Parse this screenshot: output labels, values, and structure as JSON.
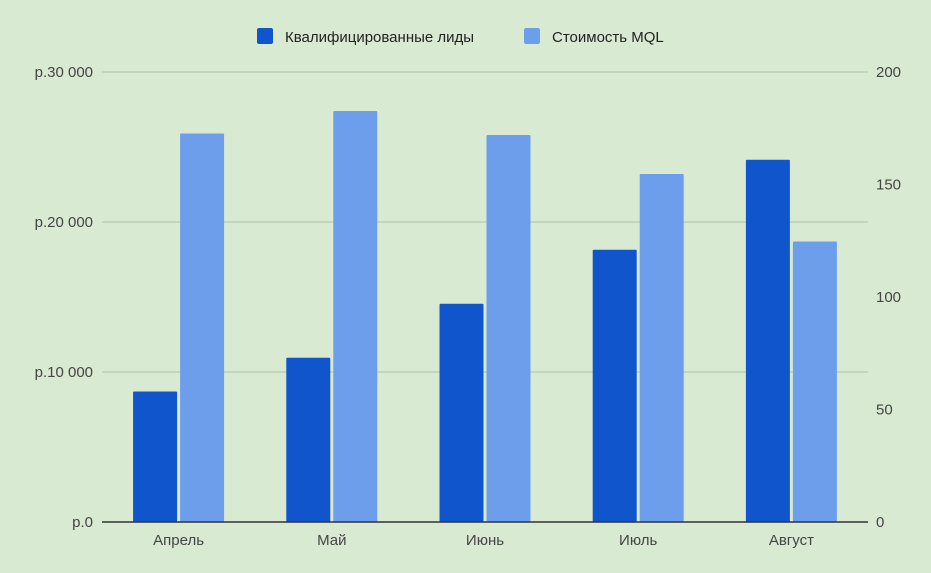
{
  "chart_data": {
    "type": "bar",
    "background": "#d9ead3",
    "categories": [
      "Апрель",
      "Май",
      "Июнь",
      "Июль",
      "Август"
    ],
    "legend_position": "top-center",
    "grid": true,
    "gridline_color": "#a9c2a2",
    "series": [
      {
        "name": "Квалифицированные лиды",
        "axis": "right",
        "color": "#1155cc",
        "values": [
          58,
          73,
          97,
          121,
          161
        ]
      },
      {
        "name": "Стоимость MQL",
        "axis": "left",
        "color": "#6d9eeb",
        "values": [
          25900,
          27400,
          25800,
          23200,
          18700
        ]
      }
    ],
    "y_left": {
      "ylim": [
        0,
        30000
      ],
      "ticks": [
        0,
        10000,
        20000,
        30000
      ],
      "tick_labels": [
        "р.0",
        "р.10 000",
        "р.20 000",
        "р.30 000"
      ]
    },
    "y_right": {
      "ylim": [
        0,
        200
      ],
      "ticks": [
        0,
        50,
        100,
        150,
        200
      ],
      "tick_labels": [
        "0",
        "50",
        "100",
        "150",
        "200"
      ]
    }
  }
}
